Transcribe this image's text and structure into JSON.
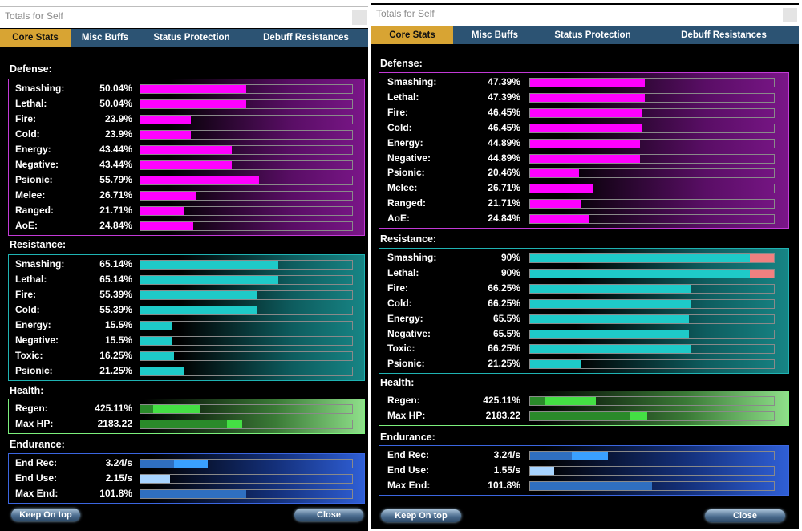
{
  "windows": [
    {
      "title": "Totals for Self",
      "tabs": [
        "Core Stats",
        "Misc Buffs",
        "Status Protection",
        "Debuff Resistances"
      ],
      "defense": {
        "heading": "Defense:",
        "rows": [
          {
            "label": "Smashing:",
            "value": "50.04%",
            "fill": 0.5
          },
          {
            "label": "Lethal:",
            "value": "50.04%",
            "fill": 0.5
          },
          {
            "label": "Fire:",
            "value": "23.9%",
            "fill": 0.24
          },
          {
            "label": "Cold:",
            "value": "23.9%",
            "fill": 0.24
          },
          {
            "label": "Energy:",
            "value": "43.44%",
            "fill": 0.43
          },
          {
            "label": "Negative:",
            "value": "43.44%",
            "fill": 0.43
          },
          {
            "label": "Psionic:",
            "value": "55.79%",
            "fill": 0.56
          },
          {
            "label": "Melee:",
            "value": "26.71%",
            "fill": 0.26
          },
          {
            "label": "Ranged:",
            "value": "21.71%",
            "fill": 0.21
          },
          {
            "label": "AoE:",
            "value": "24.84%",
            "fill": 0.25
          }
        ]
      },
      "resistance": {
        "heading": "Resistance:",
        "rows": [
          {
            "label": "Smashing:",
            "value": "65.14%",
            "fill": 0.65,
            "cap": 0
          },
          {
            "label": "Lethal:",
            "value": "65.14%",
            "fill": 0.65,
            "cap": 0
          },
          {
            "label": "Fire:",
            "value": "55.39%",
            "fill": 0.55,
            "cap": 0
          },
          {
            "label": "Cold:",
            "value": "55.39%",
            "fill": 0.55,
            "cap": 0
          },
          {
            "label": "Energy:",
            "value": "15.5%",
            "fill": 0.15,
            "cap": 0
          },
          {
            "label": "Negative:",
            "value": "15.5%",
            "fill": 0.15,
            "cap": 0
          },
          {
            "label": "Toxic:",
            "value": "16.25%",
            "fill": 0.16,
            "cap": 0
          },
          {
            "label": "Psionic:",
            "value": "21.25%",
            "fill": 0.21,
            "cap": 0
          }
        ]
      },
      "health": {
        "heading": "Health:",
        "rows": [
          {
            "label": "Regen:",
            "value": "425.11%",
            "base": 0.06,
            "fill": 0.28,
            "base_color": "#2a8a2a",
            "fill_color": "#44e044"
          },
          {
            "label": "Max HP:",
            "value": "2183.22",
            "base": 0.41,
            "fill": 0.48,
            "base_color": "#2a8a2a",
            "fill_color": "#44e044"
          }
        ]
      },
      "endurance": {
        "heading": "Endurance:",
        "rows": [
          {
            "label": "End Rec:",
            "value": "3.24/s",
            "base": 0.16,
            "fill": 0.32,
            "base_color": "#2f6fc0",
            "fill_color": "#3aa0ff"
          },
          {
            "label": "End Use:",
            "value": "2.15/s",
            "base": 0.14,
            "fill": 0.14,
            "base_color": "#a8d4ff",
            "fill_color": "#a8d4ff"
          },
          {
            "label": "Max End:",
            "value": "101.8%",
            "base": 0.5,
            "fill": 0.5,
            "base_color": "#2f6fc0",
            "fill_color": "#2f6fc0"
          }
        ]
      },
      "buttons": {
        "keep": "Keep On top",
        "close": "Close"
      }
    },
    {
      "title": "Totals for Self",
      "tabs": [
        "Core Stats",
        "Misc Buffs",
        "Status Protection",
        "Debuff Resistances"
      ],
      "defense": {
        "heading": "Defense:",
        "rows": [
          {
            "label": "Smashing:",
            "value": "47.39%",
            "fill": 0.47
          },
          {
            "label": "Lethal:",
            "value": "47.39%",
            "fill": 0.47
          },
          {
            "label": "Fire:",
            "value": "46.45%",
            "fill": 0.46
          },
          {
            "label": "Cold:",
            "value": "46.45%",
            "fill": 0.46
          },
          {
            "label": "Energy:",
            "value": "44.89%",
            "fill": 0.45
          },
          {
            "label": "Negative:",
            "value": "44.89%",
            "fill": 0.45
          },
          {
            "label": "Psionic:",
            "value": "20.46%",
            "fill": 0.2
          },
          {
            "label": "Melee:",
            "value": "26.71%",
            "fill": 0.26
          },
          {
            "label": "Ranged:",
            "value": "21.71%",
            "fill": 0.21
          },
          {
            "label": "AoE:",
            "value": "24.84%",
            "fill": 0.24
          }
        ]
      },
      "resistance": {
        "heading": "Resistance:",
        "rows": [
          {
            "label": "Smashing:",
            "value": "90%",
            "fill": 0.9,
            "cap": 0.1
          },
          {
            "label": "Lethal:",
            "value": "90%",
            "fill": 0.9,
            "cap": 0.1
          },
          {
            "label": "Fire:",
            "value": "66.25%",
            "fill": 0.66,
            "cap": 0
          },
          {
            "label": "Cold:",
            "value": "66.25%",
            "fill": 0.66,
            "cap": 0
          },
          {
            "label": "Energy:",
            "value": "65.5%",
            "fill": 0.65,
            "cap": 0
          },
          {
            "label": "Negative:",
            "value": "65.5%",
            "fill": 0.65,
            "cap": 0
          },
          {
            "label": "Toxic:",
            "value": "66.25%",
            "fill": 0.66,
            "cap": 0
          },
          {
            "label": "Psionic:",
            "value": "21.25%",
            "fill": 0.21,
            "cap": 0
          }
        ]
      },
      "health": {
        "heading": "Health:",
        "rows": [
          {
            "label": "Regen:",
            "value": "425.11%",
            "base": 0.06,
            "fill": 0.27,
            "base_color": "#2a8a2a",
            "fill_color": "#44e044"
          },
          {
            "label": "Max HP:",
            "value": "2183.22",
            "base": 0.41,
            "fill": 0.48,
            "base_color": "#2a8a2a",
            "fill_color": "#44e044"
          }
        ]
      },
      "endurance": {
        "heading": "Endurance:",
        "rows": [
          {
            "label": "End Rec:",
            "value": "3.24/s",
            "base": 0.17,
            "fill": 0.32,
            "base_color": "#2f6fc0",
            "fill_color": "#3aa0ff"
          },
          {
            "label": "End Use:",
            "value": "1.55/s",
            "base": 0.1,
            "fill": 0.1,
            "base_color": "#a8d4ff",
            "fill_color": "#a8d4ff"
          },
          {
            "label": "Max End:",
            "value": "101.8%",
            "base": 0.5,
            "fill": 0.5,
            "base_color": "#2f6fc0",
            "fill_color": "#2f6fc0"
          }
        ]
      },
      "buttons": {
        "keep": "Keep On top",
        "close": "Close"
      }
    }
  ]
}
